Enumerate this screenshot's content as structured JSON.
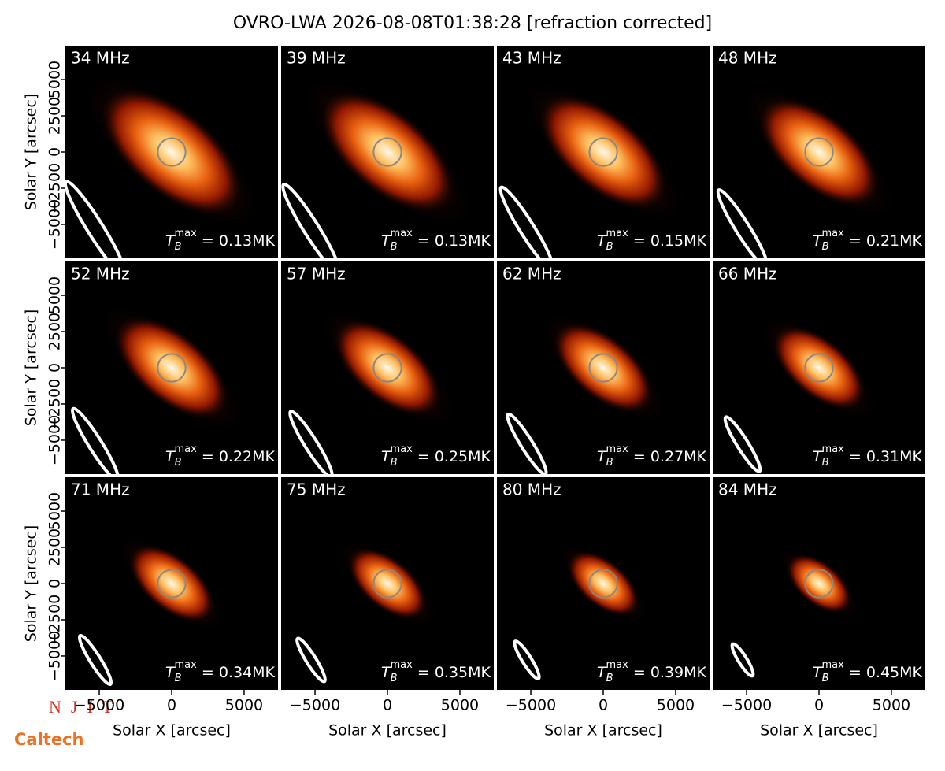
{
  "chart_data": {
    "type": "image",
    "title": "OVRO-LWA 2026-08-08T01:38:28 [refraction corrected]",
    "xlabel": "Solar X [arcsec]",
    "ylabel": "Solar Y [arcsec]",
    "xlim": [
      -7340,
      7340
    ],
    "ylim": [
      -7340,
      7340
    ],
    "xticks": [
      {
        "value": -5000,
        "label": "−5000"
      },
      0,
      5000
    ],
    "yticks": [
      {
        "value": -5000,
        "label": "−5000"
      },
      {
        "value": -2500,
        "label": "−2500"
      },
      0,
      2500,
      5000
    ],
    "tmax_symbol": "T",
    "tmax_sub": "B",
    "tmax_sup": "max",
    "tmax_eq": " = ",
    "panels": [
      {
        "freq": "34 MHz",
        "tmax": "0.13MK"
      },
      {
        "freq": "39 MHz",
        "tmax": "0.13MK"
      },
      {
        "freq": "43 MHz",
        "tmax": "0.15MK"
      },
      {
        "freq": "48 MHz",
        "tmax": "0.21MK"
      },
      {
        "freq": "52 MHz",
        "tmax": "0.22MK"
      },
      {
        "freq": "57 MHz",
        "tmax": "0.25MK"
      },
      {
        "freq": "62 MHz",
        "tmax": "0.27MK"
      },
      {
        "freq": "66 MHz",
        "tmax": "0.31MK"
      },
      {
        "freq": "71 MHz",
        "tmax": "0.34MK"
      },
      {
        "freq": "75 MHz",
        "tmax": "0.35MK"
      },
      {
        "freq": "80 MHz",
        "tmax": "0.39MK"
      },
      {
        "freq": "84 MHz",
        "tmax": "0.45MK"
      }
    ],
    "logos": [
      "NJIT",
      "Caltech"
    ]
  }
}
